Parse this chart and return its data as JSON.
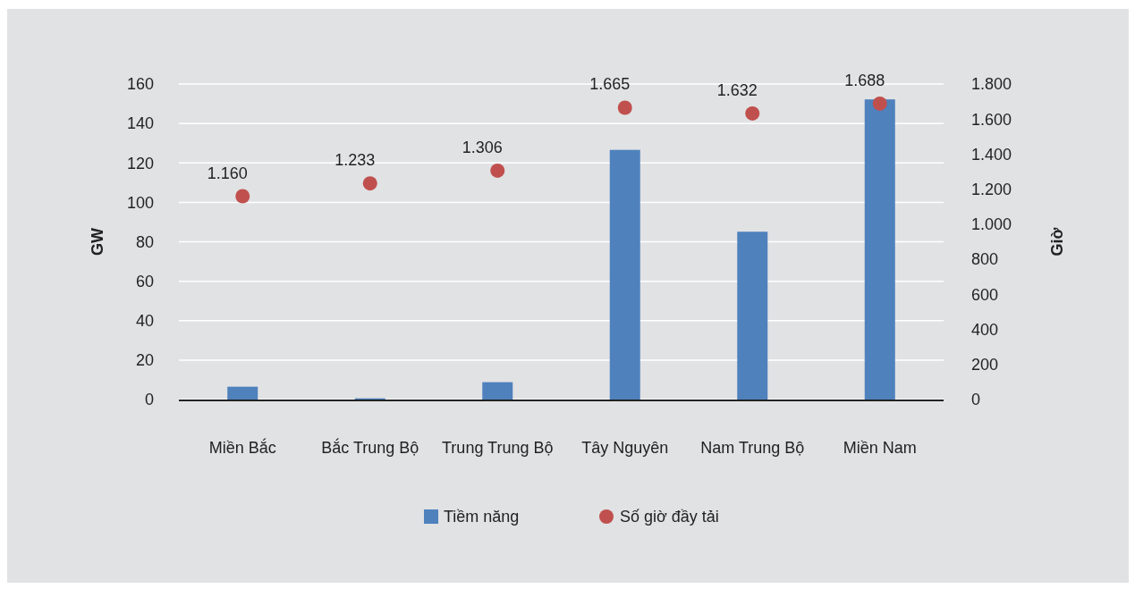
{
  "chart_data": {
    "type": "bar",
    "categories": [
      "Miền Bắc",
      "Bắc Trung Bộ",
      "Trung Trung Bộ",
      "Tây Nguyên",
      "Nam Trung Bộ",
      "Miền Nam"
    ],
    "ylabel": "GW",
    "y2label": "Giờ",
    "series": [
      {
        "name": "Tiềm năng",
        "color": "#4f81bd",
        "values": [
          6.5,
          0.6,
          8.8,
          126.6,
          85.1,
          152.2
        ]
      },
      {
        "name": "Số giờ đầy tải",
        "type": "scatter",
        "axis": "y2",
        "color": "#c0504d",
        "marker": "circle",
        "values": [
          1160,
          1233,
          1306,
          1665,
          1632,
          1688
        ],
        "value_labels": [
          "1.160",
          "1.233",
          "1.306",
          "1.665",
          "1.632",
          "1.688"
        ]
      }
    ],
    "ylim": [
      0,
      160
    ],
    "yticks": [
      0,
      20,
      40,
      60,
      80,
      100,
      120,
      140,
      160
    ],
    "y2lim": [
      0,
      1800
    ],
    "y2ticks": [
      0,
      200,
      400,
      600,
      800,
      {
        "value": 1000,
        "label": "1.000"
      },
      {
        "value": 1200,
        "label": "1.200"
      },
      {
        "value": 1400,
        "label": "1.400"
      },
      {
        "value": 1600,
        "label": "1.600"
      },
      {
        "value": 1800,
        "label": "1.800"
      }
    ],
    "grid": "y",
    "legend": "bottom"
  }
}
